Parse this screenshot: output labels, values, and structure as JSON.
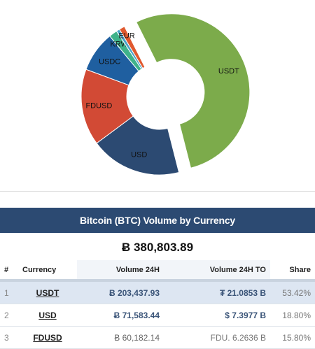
{
  "chart_data": {
    "type": "pie",
    "donut": true,
    "slices": [
      {
        "label": "USDT",
        "share": 53.42,
        "color": "#7cab4b",
        "exploded": true
      },
      {
        "label": "USD",
        "share": 18.8,
        "color": "#2c4a72"
      },
      {
        "label": "FDUSD",
        "share": 15.8,
        "color": "#d24a35"
      },
      {
        "label": "USDC",
        "share": 8.4,
        "color": "#1f5fa0"
      },
      {
        "label": "KRW",
        "share": 1.7,
        "color": "#3fb28a"
      },
      {
        "label": "",
        "share": 0.7,
        "color": "#4aa3c8"
      },
      {
        "label": "EUR",
        "share": 1.18,
        "color": "#e0592f"
      }
    ]
  },
  "panel": {
    "title": "Bitcoin (BTC) Volume by Currency",
    "total": "Ƀ 380,803.89"
  },
  "table": {
    "headers": {
      "rank": "#",
      "currency": "Currency",
      "volume": "Volume 24H",
      "volume_to": "Volume 24H TO",
      "share": "Share"
    },
    "rows": [
      {
        "rank": "1",
        "currency": "USDT",
        "volume": "Ƀ 203,437.93",
        "volume_to": "₮ 21.0853 B",
        "share": "53.42%"
      },
      {
        "rank": "2",
        "currency": "USD",
        "volume": "Ƀ 71,583.44",
        "volume_to": "$ 7.3977 B",
        "share": "18.80%"
      },
      {
        "rank": "3",
        "currency": "FDUSD",
        "volume": "Ƀ 60,182.14",
        "volume_to": "FDU. 6.2636 B",
        "share": "15.80%"
      }
    ]
  }
}
